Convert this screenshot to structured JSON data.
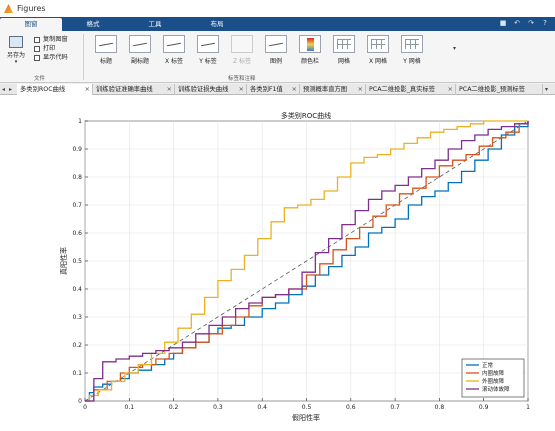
{
  "window": {
    "title": "Figures"
  },
  "ribbon_tabs": [
    "图窗",
    "格式",
    "工具",
    "布局"
  ],
  "quick_access": [
    "save-icon",
    "undo-icon",
    "redo-icon",
    "help-icon"
  ],
  "file_section": {
    "save_as": "另存为",
    "copy_figure": "复制图窗",
    "print": "打印",
    "show_code": "显示代码",
    "label": "文件"
  },
  "annotation_section": {
    "label": "标签和注释",
    "tools": [
      "标题",
      "副标题",
      "X 标签",
      "Y 标签",
      "Z 标签",
      "图例",
      "颜色栏",
      "网格",
      "X 网格",
      "Y 网格"
    ]
  },
  "doc_tabs": [
    "多类别ROC曲线",
    "训练验证准确率曲线",
    "训练验证损失曲线",
    "各类别F1值",
    "预测概率直方图",
    "PCA二维投影_真实标签",
    "PCA二维投影_预测标签"
  ],
  "chart_data": {
    "type": "line",
    "title": "多类别ROC曲线",
    "xlabel": "假阳性率",
    "ylabel": "真阳性率",
    "xlim": [
      0,
      1
    ],
    "ylim": [
      0,
      1
    ],
    "xticks": [
      "0",
      "0.1",
      "0.2",
      "0.3",
      "0.4",
      "0.5",
      "0.6",
      "0.7",
      "0.8",
      "0.9",
      "1"
    ],
    "yticks": [
      "0",
      "0.1",
      "0.2",
      "0.3",
      "0.4",
      "0.5",
      "0.6",
      "0.7",
      "0.8",
      "0.9",
      "1"
    ],
    "grid": true,
    "legend_position": "bottom-right",
    "diagonal": true,
    "series": [
      {
        "name": "正常",
        "color": "#0072bd",
        "x": [
          0,
          0.01,
          0.02,
          0.04,
          0.06,
          0.08,
          0.1,
          0.12,
          0.15,
          0.18,
          0.2,
          0.22,
          0.25,
          0.28,
          0.3,
          0.33,
          0.36,
          0.4,
          0.43,
          0.46,
          0.49,
          0.52,
          0.55,
          0.58,
          0.61,
          0.64,
          0.67,
          0.7,
          0.73,
          0.76,
          0.79,
          0.82,
          0.85,
          0.88,
          0.91,
          0.94,
          0.97,
          1.0
        ],
        "y": [
          0,
          0.03,
          0.05,
          0.06,
          0.07,
          0.08,
          0.1,
          0.11,
          0.13,
          0.15,
          0.17,
          0.19,
          0.21,
          0.24,
          0.26,
          0.27,
          0.3,
          0.33,
          0.35,
          0.38,
          0.41,
          0.45,
          0.48,
          0.52,
          0.55,
          0.6,
          0.62,
          0.65,
          0.7,
          0.73,
          0.75,
          0.78,
          0.82,
          0.86,
          0.9,
          0.95,
          0.98,
          1.0
        ]
      },
      {
        "name": "内圈故障",
        "color": "#d95319",
        "x": [
          0,
          0.02,
          0.05,
          0.08,
          0.1,
          0.13,
          0.16,
          0.19,
          0.22,
          0.25,
          0.28,
          0.31,
          0.34,
          0.37,
          0.4,
          0.43,
          0.46,
          0.5,
          0.53,
          0.56,
          0.59,
          0.62,
          0.65,
          0.68,
          0.71,
          0.74,
          0.77,
          0.8,
          0.83,
          0.86,
          0.89,
          0.92,
          0.95,
          0.98,
          1.0
        ],
        "y": [
          0,
          0.04,
          0.07,
          0.1,
          0.12,
          0.13,
          0.15,
          0.17,
          0.19,
          0.21,
          0.24,
          0.27,
          0.3,
          0.34,
          0.37,
          0.38,
          0.4,
          0.45,
          0.49,
          0.54,
          0.58,
          0.62,
          0.66,
          0.7,
          0.74,
          0.76,
          0.8,
          0.84,
          0.86,
          0.88,
          0.91,
          0.94,
          0.96,
          0.99,
          1.0
        ]
      },
      {
        "name": "外圈故障",
        "color": "#edb120",
        "x": [
          0,
          0.01,
          0.03,
          0.06,
          0.09,
          0.12,
          0.15,
          0.18,
          0.21,
          0.24,
          0.27,
          0.3,
          0.33,
          0.36,
          0.39,
          0.42,
          0.45,
          0.48,
          0.51,
          0.54,
          0.57,
          0.6,
          0.63,
          0.66,
          0.69,
          0.72,
          0.75,
          0.78,
          0.81,
          0.84,
          0.87,
          0.9,
          0.93,
          0.96,
          1.0
        ],
        "y": [
          0,
          0.02,
          0.04,
          0.07,
          0.1,
          0.13,
          0.17,
          0.21,
          0.26,
          0.31,
          0.37,
          0.43,
          0.47,
          0.52,
          0.58,
          0.64,
          0.69,
          0.7,
          0.72,
          0.75,
          0.8,
          0.85,
          0.87,
          0.88,
          0.9,
          0.92,
          0.94,
          0.96,
          0.97,
          0.98,
          0.99,
          1.0,
          1.0,
          1.0,
          1.0
        ]
      },
      {
        "name": "滚动体故障",
        "color": "#7e2f8e",
        "x": [
          0,
          0.02,
          0.04,
          0.07,
          0.1,
          0.13,
          0.16,
          0.19,
          0.22,
          0.25,
          0.28,
          0.31,
          0.34,
          0.37,
          0.4,
          0.43,
          0.46,
          0.49,
          0.52,
          0.55,
          0.58,
          0.61,
          0.64,
          0.67,
          0.7,
          0.73,
          0.76,
          0.79,
          0.82,
          0.85,
          0.88,
          0.91,
          0.94,
          0.97,
          1.0
        ],
        "y": [
          0,
          0.08,
          0.14,
          0.15,
          0.16,
          0.17,
          0.18,
          0.19,
          0.21,
          0.24,
          0.27,
          0.3,
          0.33,
          0.35,
          0.37,
          0.38,
          0.4,
          0.46,
          0.53,
          0.58,
          0.63,
          0.68,
          0.72,
          0.75,
          0.77,
          0.8,
          0.83,
          0.86,
          0.9,
          0.93,
          0.95,
          0.97,
          0.98,
          0.99,
          1.0
        ]
      }
    ]
  }
}
